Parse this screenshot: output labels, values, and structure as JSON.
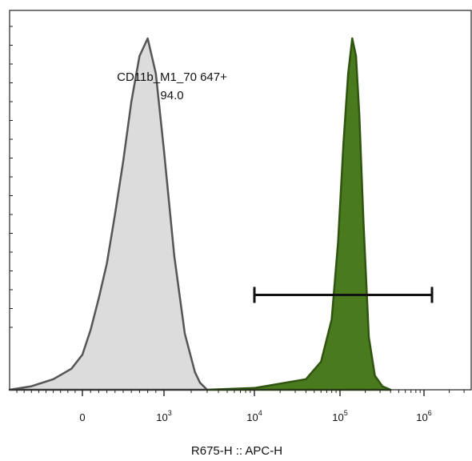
{
  "chart_data": {
    "type": "area",
    "xlabel": "R675-H :: APC-H",
    "ylabel": "",
    "x_scale": "biexponential",
    "xlim": [
      -1000,
      1000000
    ],
    "ylim": [
      0,
      1
    ],
    "x_ticks": [
      {
        "value": 0,
        "base": "0",
        "exp": ""
      },
      {
        "value": 1000,
        "base": "10",
        "exp": "3"
      },
      {
        "value": 10000,
        "base": "10",
        "exp": "4"
      },
      {
        "value": 100000,
        "base": "10",
        "exp": "5"
      },
      {
        "value": 1000000,
        "base": "10",
        "exp": "6"
      }
    ],
    "series": [
      {
        "fill": "#dcdcdc",
        "stroke": "#555555",
        "x": [
          -1000,
          -700,
          -400,
          -150,
          0,
          100,
          200,
          300,
          400,
          500,
          600,
          700,
          800,
          900,
          1000,
          1300,
          1700,
          2200,
          2500,
          3000
        ],
        "y": [
          0.0,
          0.01,
          0.03,
          0.06,
          0.1,
          0.17,
          0.26,
          0.36,
          0.5,
          0.65,
          0.82,
          0.95,
          1.0,
          0.9,
          0.68,
          0.38,
          0.16,
          0.05,
          0.02,
          0.0
        ]
      },
      {
        "fill": "#4a7a1e",
        "stroke": "#2f5410",
        "x": [
          3000,
          10000,
          40000,
          60000,
          80000,
          95000,
          110000,
          125000,
          140000,
          155000,
          170000,
          190000,
          220000,
          260000,
          320000,
          400000
        ],
        "y": [
          0.0,
          0.005,
          0.03,
          0.08,
          0.2,
          0.42,
          0.7,
          0.9,
          1.0,
          0.95,
          0.78,
          0.48,
          0.15,
          0.04,
          0.01,
          0.0
        ]
      }
    ],
    "gate": {
      "name": "CD11b_M1_70 647+",
      "percent": "94.0",
      "x_range": [
        10000,
        1200000
      ],
      "y_level": 0.27
    }
  }
}
